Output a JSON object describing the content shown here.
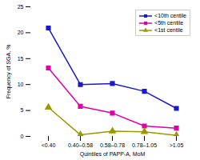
{
  "chart_data": {
    "type": "line",
    "categories": [
      "<0.40",
      "0.40–0.58",
      "0.58–0.78",
      "0.78–1.05",
      ">1.05"
    ],
    "series": [
      {
        "name": "<10th centile",
        "color": "#1a1acc",
        "marker": "square",
        "values": [
          20.9,
          10.0,
          10.2,
          8.7,
          5.4
        ]
      },
      {
        "name": "<5th centile",
        "color": "#dd00aa",
        "marker": "square",
        "values": [
          13.2,
          5.8,
          4.5,
          2.0,
          1.6
        ]
      },
      {
        "name": "<1st centile",
        "color": "#999900",
        "marker": "triangle",
        "values": [
          5.6,
          0.3,
          1.0,
          0.9,
          0.2
        ]
      }
    ],
    "xlabel": "Quintiles of PAPP-A, MoM",
    "ylabel": "Frequency of SGA, %",
    "ylim": [
      0,
      25
    ],
    "yticks": [
      0,
      5,
      10,
      15,
      20,
      25
    ],
    "legend": "upper right"
  }
}
